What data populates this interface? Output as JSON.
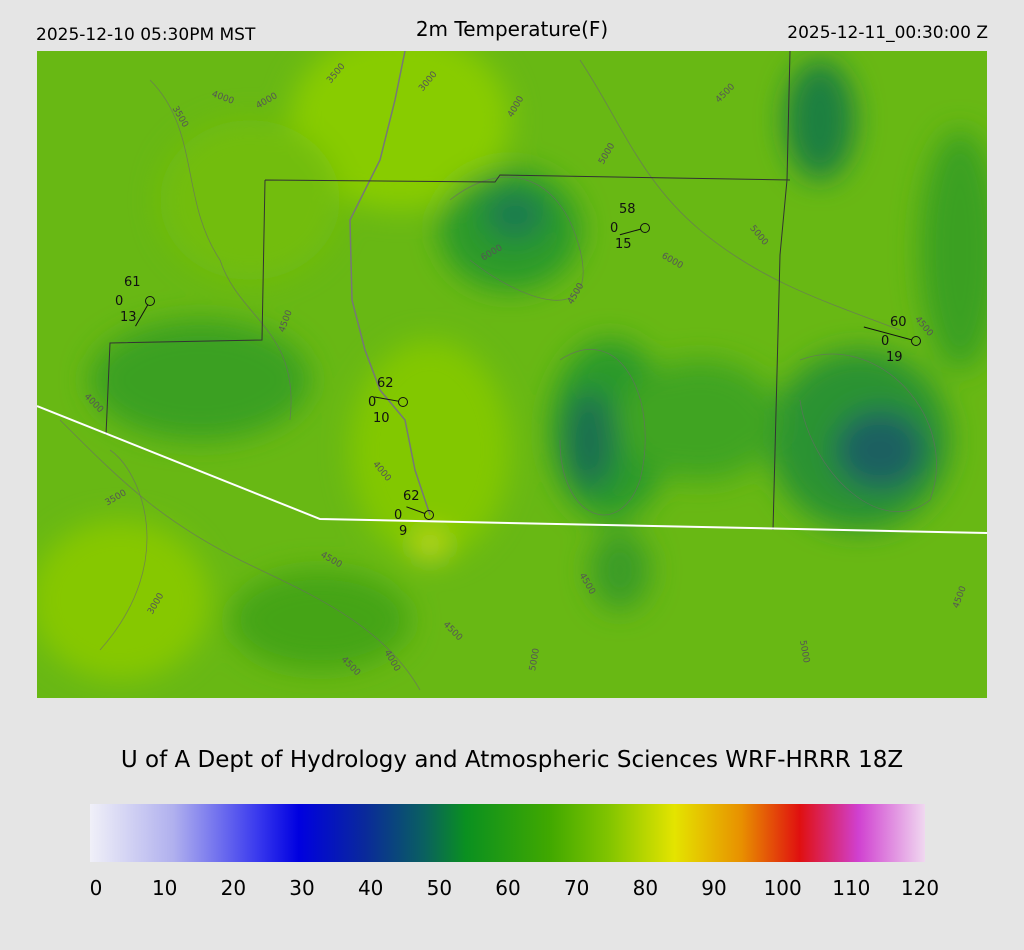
{
  "header": {
    "local_time": "2025-12-10 05:30PM MST",
    "title": "2m Temperature(F)",
    "utc_time": "2025-12-11_00:30:00 Z"
  },
  "map": {
    "stations": [
      {
        "temperature": 61,
        "visibility": 0,
        "dewpoint": 13
      },
      {
        "temperature": 58,
        "visibility": 0,
        "dewpoint": 15
      },
      {
        "temperature": 60,
        "visibility": 0,
        "dewpoint": 19
      },
      {
        "temperature": 62,
        "visibility": 0,
        "dewpoint": 10
      },
      {
        "temperature": 62,
        "visibility": 0,
        "dewpoint": 9
      }
    ],
    "contour_labels": [
      3500,
      4000,
      4000,
      3500,
      3000,
      4000,
      5000,
      4500,
      5000,
      6000,
      4500,
      4500,
      4000,
      3500,
      4000,
      4500,
      3000,
      4500,
      4500,
      4000,
      4500,
      5000,
      5000,
      4500,
      4500,
      6000
    ]
  },
  "footer": {
    "credit": "U of A Dept of Hydrology and Atmospheric Sciences WRF-HRRR 18Z"
  },
  "colorbar": {
    "ticks": [
      0,
      10,
      20,
      30,
      40,
      50,
      60,
      70,
      80,
      90,
      100,
      110,
      120
    ]
  }
}
